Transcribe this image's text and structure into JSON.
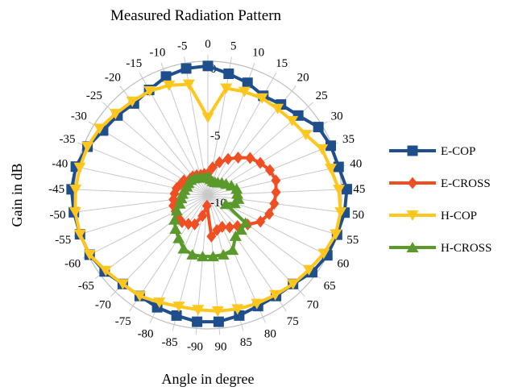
{
  "chart_data": {
    "type": "line",
    "subtype": "radar",
    "title": "Measured Radiation Pattern",
    "xlabel": "Angle in degree",
    "ylabel": "Gain in dB",
    "radial_ticks": [
      "0",
      "-5",
      "-10"
    ],
    "angle_labels": [
      "0",
      "5",
      "10",
      "15",
      "20",
      "25",
      "30",
      "35",
      "40",
      "45",
      "50",
      "55",
      "60",
      "65",
      "70",
      "75",
      "80",
      "85",
      "90",
      "-90",
      "-85",
      "-80",
      "-75",
      "-70",
      "-65",
      "-60",
      "-55",
      "-50",
      "-45",
      "-40",
      "-35",
      "-30",
      "-25",
      "-20",
      "-15",
      "-10",
      "-5"
    ],
    "legend_position": "right",
    "series": [
      {
        "name": "E-COP",
        "color": "#1f4e8c",
        "marker": "square",
        "values": [
          -0.35,
          -0.8,
          -1.1,
          -1.5,
          -1.3,
          -1.0,
          -0.3,
          -0.1,
          0.0,
          0.4,
          0.3,
          0.1,
          0.0,
          -0.3,
          -0.8,
          -0.9,
          -0.9,
          -0.7,
          -0.5,
          -0.5,
          -0.7,
          -0.8,
          -0.9,
          -0.8,
          -0.4,
          -0.1,
          0.0,
          0.1,
          0.2,
          0.1,
          -0.3,
          -0.8,
          -1.0,
          -1.2,
          -1.0,
          -0.6,
          -0.4
        ]
      },
      {
        "name": "E-CROSS",
        "color": "#f04e23",
        "marker": "diamond",
        "values": [
          -8.4,
          -7.9,
          -7.4,
          -6.9,
          -6.4,
          -5.8,
          -5.4,
          -5.0,
          -4.8,
          -4.9,
          -5.0,
          -5.2,
          -5.6,
          -6.3,
          -6.8,
          -7.1,
          -7.4,
          -7.3,
          -6.9,
          -9.2,
          -8.4,
          -7.6,
          -7.4,
          -7.2,
          -7.2,
          -7.3,
          -7.3,
          -7.4,
          -7.5,
          -7.6,
          -7.8,
          -7.9,
          -8.2,
          -8.2,
          -8.3,
          -8.4,
          -8.4
        ]
      },
      {
        "name": "H-COP",
        "color": "#ffc61e",
        "marker": "triangle-down",
        "values": [
          -4.2,
          -1.9,
          -1.8,
          -1.7,
          -1.7,
          -1.6,
          -1.4,
          -0.8,
          -0.6,
          -0.2,
          0.0,
          0.0,
          -0.3,
          -0.6,
          -0.8,
          -1.0,
          -1.1,
          -1.2,
          -1.3,
          -1.4,
          -1.4,
          -1.2,
          -0.9,
          -0.8,
          -0.5,
          -0.1,
          0.0,
          0.0,
          -0.1,
          -0.2,
          -0.3,
          -0.5,
          -0.8,
          -1.0,
          -1.1,
          -1.3,
          -1.6
        ]
      },
      {
        "name": "H-CROSS",
        "color": "#5a9a2a",
        "marker": "triangle-up",
        "values": [
          -8.6,
          -8.8,
          -8.9,
          -8.9,
          -8.8,
          -8.6,
          -8.4,
          -8.1,
          -7.8,
          -7.8,
          -7.7,
          -7.9,
          -8.5,
          -6.5,
          -6.4,
          -6.3,
          -5.5,
          -5.4,
          -5.4,
          -5.4,
          -5.4,
          -5.6,
          -6.1,
          -6.5,
          -6.9,
          -7.4,
          -7.8,
          -8.0,
          -8.1,
          -8.2,
          -8.3,
          -8.3,
          -8.3,
          -8.4,
          -8.5,
          -8.6,
          -8.7
        ]
      }
    ]
  }
}
